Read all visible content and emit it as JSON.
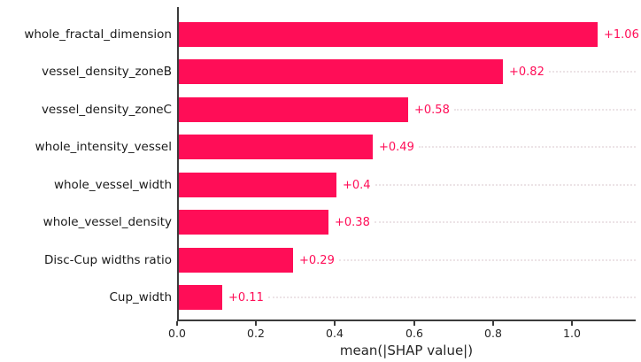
{
  "chart_data": {
    "type": "bar",
    "orientation": "horizontal",
    "title": "",
    "xlabel": "mean(|SHAP value|)",
    "ylabel": "",
    "categories": [
      "whole_fractal_dimension",
      "vessel_density_zoneB",
      "vessel_density_zoneC",
      "whole_intensity_vessel",
      "whole_vessel_width",
      "whole_vessel_density",
      "Disc-Cup widths ratio",
      "Cup_width"
    ],
    "values": [
      1.06,
      0.82,
      0.58,
      0.49,
      0.4,
      0.38,
      0.29,
      0.11
    ],
    "value_labels": [
      "+1.06",
      "+0.82",
      "+0.58",
      "+0.49",
      "+0.4",
      "+0.38",
      "+0.29",
      "+0.11"
    ],
    "x_ticks": [
      {
        "label": "0.0",
        "value": 0.0
      },
      {
        "label": "0.2",
        "value": 0.2
      },
      {
        "label": "0.4",
        "value": 0.4
      },
      {
        "label": "0.6",
        "value": 0.6
      },
      {
        "label": "0.8",
        "value": 0.8
      },
      {
        "label": "1.0",
        "value": 1.0
      }
    ],
    "xlim": [
      0.0,
      1.16
    ],
    "grid": "dotted-leader-lines-per-bar",
    "legend": "none",
    "colors": {
      "bar": "#ff0d57",
      "value_label": "#ff0d57",
      "leader_line": "#ece3e6",
      "axis": "#3b3b3b",
      "tick_label": "#262626",
      "feature_label": "#1a1a1a",
      "background": "#ffffff"
    }
  }
}
